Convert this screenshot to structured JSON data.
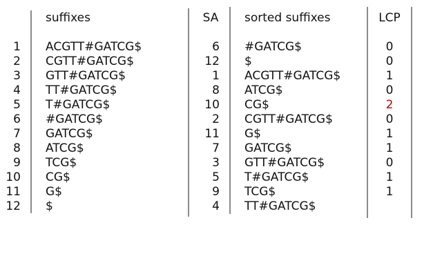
{
  "headers": {
    "suffixes": "suffixes",
    "sa": "SA",
    "sorted": "sorted suffixes",
    "lcp": "LCP"
  },
  "rows": [
    {
      "index": "1",
      "suffix": "ACGTT#GATCG$",
      "sa": "6",
      "sorted": "#GATCG$",
      "lcp": "0"
    },
    {
      "index": "2",
      "suffix": "CGTT#GATCG$",
      "sa": "12",
      "sorted": "$",
      "lcp": "0"
    },
    {
      "index": "3",
      "suffix": "GTT#GATCG$",
      "sa": "1",
      "sorted": "ACGTT#GATCG$",
      "lcp": "1"
    },
    {
      "index": "4",
      "suffix": "TT#GATCG$",
      "sa": "8",
      "sorted": "ATCG$",
      "lcp": "0"
    },
    {
      "index": "5",
      "suffix": "T#GATCG$",
      "sa": "10",
      "sorted": "CG$",
      "lcp": "2"
    },
    {
      "index": "6",
      "suffix": "#GATCG$",
      "sa": "2",
      "sorted": "CGTT#GATCG$",
      "lcp": "0"
    },
    {
      "index": "7",
      "suffix": "GATCG$",
      "sa": "11",
      "sorted": "G$",
      "lcp": "1"
    },
    {
      "index": "8",
      "suffix": "ATCG$",
      "sa": "7",
      "sorted": "GATCG$",
      "lcp": "1"
    },
    {
      "index": "9",
      "suffix": "TCG$",
      "sa": "3",
      "sorted": "GTT#GATCG$",
      "lcp": "0"
    },
    {
      "index": "10",
      "suffix": "CG$",
      "sa": "5",
      "sorted": "T#GATCG$",
      "lcp": "1"
    },
    {
      "index": "11",
      "suffix": "G$",
      "sa": "9",
      "sorted": "TCG$",
      "lcp": "1"
    },
    {
      "index": "12",
      "suffix": "$",
      "sa": "4",
      "sorted": "TT#GATCG$",
      "lcp": ""
    }
  ],
  "highlight": {
    "row": "5",
    "column": "lcp",
    "color": "#c00000"
  },
  "colors": {
    "text": "#111111",
    "divider": "#8a8a8a",
    "highlight": "#c00000"
  }
}
